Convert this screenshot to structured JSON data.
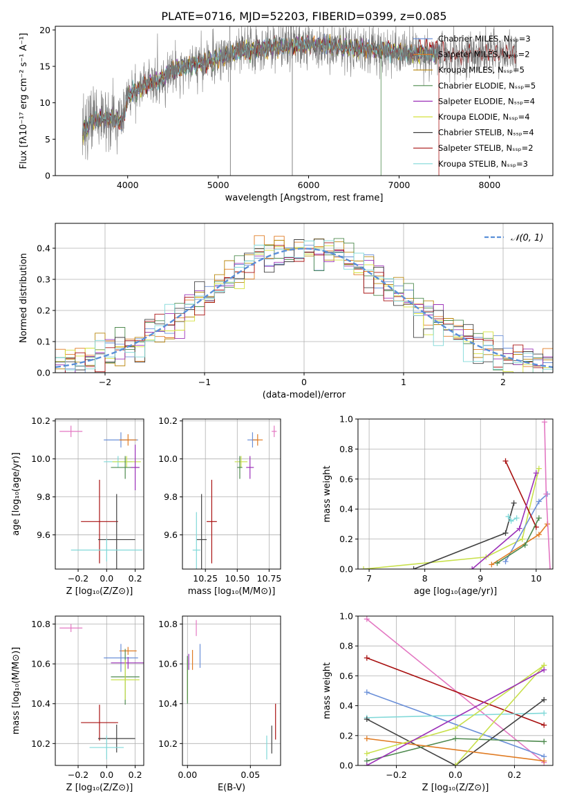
{
  "figure_title": "PLATE=0716, MJD=52203, FIBERID=0399, z=0.085",
  "model_colors": [
    "#6a8fd8",
    "#e07b22",
    "#b8860b",
    "#4e8a4e",
    "#9b30b8",
    "#d4e03a",
    "#404040",
    "#a81010",
    "#7fd8d8"
  ],
  "extra_colors": {
    "pink": "#e377c2",
    "olive": "#c8e04a",
    "lightgrey": "#888888"
  },
  "chart_data": [
    {
      "id": "spectrum",
      "type": "line",
      "xlabel": "wavelength [Angstrom, rest frame]",
      "ylabel": "Flux [fλ10⁻¹⁷ erg cm⁻² s⁻¹ A⁻¹]",
      "xlim": [
        3200,
        8700
      ],
      "ylim": [
        0,
        20.5
      ],
      "xticks": [
        4000,
        5000,
        6000,
        7000,
        8000
      ],
      "yticks": [
        0,
        5,
        10,
        15,
        20
      ],
      "grid": false,
      "legend_position": "top-right",
      "legend": [
        "Chabrier MILES, Nₛₛₚ=3",
        "Salpeter MILES, Nₛₛₚ=2",
        "Kroupa MILES, Nₛₛₚ=5",
        "Chabrier ELODIE, Nₛₛₚ=5",
        "Salpeter ELODIE, Nₛₛₚ=4",
        "Kroupa ELODIE, Nₛₛₚ=4",
        "Chabrier STELIB, Nₛₛₚ=4",
        "Salpeter STELIB, Nₛₛₚ=2",
        "Kroupa STELIB, Nₛₛₚ=3"
      ],
      "data_wavelength_range": [
        3500,
        8300
      ],
      "continuum_knots": [
        [
          3500,
          6.0
        ],
        [
          3600,
          7.5
        ],
        [
          3800,
          8.0
        ],
        [
          3950,
          7.5
        ],
        [
          4000,
          11.0
        ],
        [
          4200,
          12.5
        ],
        [
          4350,
          13.0
        ],
        [
          4500,
          14.5
        ],
        [
          4800,
          15.5
        ],
        [
          5000,
          16.0
        ],
        [
          5200,
          17.0
        ],
        [
          5500,
          17.5
        ],
        [
          6000,
          18.0
        ],
        [
          6500,
          17.5
        ],
        [
          7000,
          17.0
        ],
        [
          7500,
          16.5
        ],
        [
          8000,
          16.8
        ],
        [
          8300,
          16.8
        ]
      ]
    },
    {
      "id": "residuals",
      "type": "histogram",
      "xlabel": "(data-model)/error",
      "ylabel": "Normed distribution",
      "xlim": [
        -2.5,
        2.5
      ],
      "ylim": [
        0,
        0.48
      ],
      "xticks": [
        -2,
        -1,
        0,
        1,
        2
      ],
      "yticks": [
        0.0,
        0.1,
        0.2,
        0.3,
        0.4
      ],
      "grid": true,
      "legend_position": "top-right",
      "legend": [
        "𝒩(0, 1)"
      ],
      "reference_curve": {
        "name": "𝒩(0, 1)",
        "mean": 0,
        "sd": 1,
        "color": "#5a8fd8"
      }
    },
    {
      "id": "age_vs_Z",
      "type": "errorbar",
      "xlabel": "Z [log₁₀(Z/Z⊙)]",
      "ylabel": "age [log₁₀(age/yr)]",
      "xlim": [
        -0.36,
        0.26
      ],
      "ylim": [
        9.42,
        10.21
      ],
      "xticks": [
        -0.2,
        0.0,
        0.2
      ],
      "yticks": [
        9.6,
        9.8,
        10.0,
        10.2
      ],
      "grid": true,
      "points": [
        {
          "color": "#e377c2",
          "x": -0.25,
          "y": 10.145,
          "xerr": 0.08,
          "yerr": 0.03
        },
        {
          "color": "#6a8fd8",
          "x": 0.1,
          "y": 10.1,
          "xerr": 0.12,
          "yerr": 0.04
        },
        {
          "color": "#e07b22",
          "x": 0.15,
          "y": 10.1,
          "xerr": 0.06,
          "yerr": 0.03
        },
        {
          "color": "#7fd8d8",
          "x": 0.08,
          "y": 9.985,
          "xerr": 0.1,
          "yerr": 0.03
        },
        {
          "color": "#c8e04a",
          "x": 0.14,
          "y": 9.985,
          "xerr": 0.1,
          "yerr": 0.03
        },
        {
          "color": "#4e8a4e",
          "x": 0.13,
          "y": 9.955,
          "xerr": 0.1,
          "yerr": 0.06
        },
        {
          "color": "#9b30b8",
          "x": 0.2,
          "y": 9.955,
          "xerr": 0.03,
          "yerr": 0.12
        },
        {
          "color": "#a81010",
          "x": -0.05,
          "y": 9.67,
          "xerr": 0.13,
          "yerr": 0.22
        },
        {
          "color": "#404040",
          "x": 0.07,
          "y": 9.575,
          "xerr": 0.13,
          "yerr": 0.24
        },
        {
          "color": "#7fd8d8",
          "x": 0.0,
          "y": 9.52,
          "xerr": 0.25,
          "yerr": 0.06
        }
      ]
    },
    {
      "id": "age_vs_mass",
      "type": "errorbar",
      "xlabel": "mass [log₁₀(M/M⊙)]",
      "ylabel": "",
      "xlim": [
        10.07,
        10.84
      ],
      "ylim": [
        9.42,
        10.21
      ],
      "xticks": [
        10.25,
        10.5,
        10.75
      ],
      "yticks": [
        9.6,
        9.8,
        10.0,
        10.2
      ],
      "grid": true,
      "points": [
        {
          "color": "#e377c2",
          "x": 10.79,
          "y": 10.145,
          "xerr": 0.02,
          "yerr": 0.03
        },
        {
          "color": "#6a8fd8",
          "x": 10.62,
          "y": 10.1,
          "xerr": 0.04,
          "yerr": 0.04
        },
        {
          "color": "#e07b22",
          "x": 10.66,
          "y": 10.1,
          "xerr": 0.04,
          "yerr": 0.03
        },
        {
          "color": "#c8e04a",
          "x": 10.53,
          "y": 9.985,
          "xerr": 0.05,
          "yerr": 0.03
        },
        {
          "color": "#4e8a4e",
          "x": 10.52,
          "y": 9.955,
          "xerr": 0.02,
          "yerr": 0.06
        },
        {
          "color": "#9b30b8",
          "x": 10.6,
          "y": 9.955,
          "xerr": 0.03,
          "yerr": 0.06
        },
        {
          "color": "#a81010",
          "x": 10.3,
          "y": 9.67,
          "xerr": 0.04,
          "yerr": 0.22
        },
        {
          "color": "#404040",
          "x": 10.22,
          "y": 9.575,
          "xerr": 0.04,
          "yerr": 0.24
        },
        {
          "color": "#7fd8d8",
          "x": 10.18,
          "y": 9.52,
          "xerr": 0.03,
          "yerr": 0.2
        }
      ]
    },
    {
      "id": "massweight_vs_age",
      "type": "line",
      "xlabel": "age  [log₁₀(age/yr)]",
      "ylabel": "mass weight",
      "xlim": [
        6.8,
        10.3
      ],
      "ylim": [
        0,
        1.0
      ],
      "xticks": [
        7,
        8,
        9,
        10
      ],
      "yticks": [
        0.0,
        0.2,
        0.4,
        0.6,
        0.8,
        1.0
      ],
      "grid": true,
      "series": [
        {
          "color": "#c8e04a",
          "x": [
            6.9,
            9.1,
            9.75,
            10.05
          ],
          "y": [
            0.0,
            0.08,
            0.2,
            0.67
          ]
        },
        {
          "color": "#404040",
          "x": [
            7.8,
            9.45,
            9.6
          ],
          "y": [
            0.0,
            0.24,
            0.44
          ]
        },
        {
          "color": "#6a8fd8",
          "x": [
            9.45,
            10.05,
            10.2
          ],
          "y": [
            0.05,
            0.45,
            0.5
          ]
        },
        {
          "color": "#a81010",
          "x": [
            9.45,
            10.0
          ],
          "y": [
            0.72,
            0.28
          ]
        },
        {
          "color": "#e07b22",
          "x": [
            9.2,
            10.05,
            10.2
          ],
          "y": [
            0.03,
            0.23,
            0.3
          ]
        },
        {
          "color": "#4e8a4e",
          "x": [
            9.3,
            9.8,
            10.05
          ],
          "y": [
            0.04,
            0.16,
            0.34
          ]
        },
        {
          "color": "#7fd8d8",
          "x": [
            9.5,
            9.55,
            9.65
          ],
          "y": [
            0.35,
            0.32,
            0.34
          ]
        },
        {
          "color": "#9b30b8",
          "x": [
            8.85,
            9.7,
            10.0
          ],
          "y": [
            0.0,
            0.27,
            0.64
          ]
        },
        {
          "color": "#e377c2",
          "x": [
            10.15,
            10.18,
            10.25
          ],
          "y": [
            0.98,
            0.5,
            0.0
          ]
        }
      ]
    },
    {
      "id": "mass_vs_Z",
      "type": "errorbar",
      "xlabel": "Z [log₁₀(Z/Z⊙)]",
      "ylabel": "mass [log₁₀(M/M⊙)]",
      "xlim": [
        -0.36,
        0.26
      ],
      "ylim": [
        10.09,
        10.84
      ],
      "xticks": [
        -0.2,
        0.0,
        0.2
      ],
      "yticks": [
        10.2,
        10.4,
        10.6,
        10.8
      ],
      "grid": true,
      "points": [
        {
          "color": "#e377c2",
          "x": -0.25,
          "y": 10.78,
          "xerr": 0.08,
          "yerr": 0.02
        },
        {
          "color": "#e07b22",
          "x": 0.15,
          "y": 10.665,
          "xerr": 0.06,
          "yerr": 0.02
        },
        {
          "color": "#6a8fd8",
          "x": 0.1,
          "y": 10.63,
          "xerr": 0.12,
          "yerr": 0.07
        },
        {
          "color": "#9b30b8",
          "x": 0.15,
          "y": 10.605,
          "xerr": 0.12,
          "yerr": 0.03
        },
        {
          "color": "#4e8a4e",
          "x": 0.13,
          "y": 10.535,
          "xerr": 0.1,
          "yerr": 0.14
        },
        {
          "color": "#c8e04a",
          "x": 0.13,
          "y": 10.52,
          "xerr": 0.1,
          "yerr": 0.1
        },
        {
          "color": "#a81010",
          "x": -0.05,
          "y": 10.305,
          "xerr": 0.13,
          "yerr": 0.09
        },
        {
          "color": "#404040",
          "x": 0.07,
          "y": 10.225,
          "xerr": 0.13,
          "yerr": 0.07
        },
        {
          "color": "#7fd8d8",
          "x": 0.0,
          "y": 10.18,
          "xerr": 0.12,
          "yerr": 0.06
        }
      ]
    },
    {
      "id": "mass_vs_EBV",
      "type": "errorbar",
      "xlabel": "E(B-V)",
      "ylabel": "",
      "xlim": [
        -0.004,
        0.074
      ],
      "ylim": [
        10.09,
        10.84
      ],
      "xticks": [
        0.0,
        0.05
      ],
      "yticks": [
        10.2,
        10.4,
        10.6,
        10.8
      ],
      "grid": true,
      "points": [
        {
          "color": "#e377c2",
          "x": 0.007,
          "y": 10.78,
          "xerr": 0,
          "yerr": 0.04
        },
        {
          "color": "#e07b22",
          "x": 0.004,
          "y": 10.62,
          "xerr": 0,
          "yerr": 0.05
        },
        {
          "color": "#6a8fd8",
          "x": 0.01,
          "y": 10.64,
          "xerr": 0,
          "yerr": 0.06
        },
        {
          "color": "#9b30b8",
          "x": 0.001,
          "y": 10.61,
          "xerr": 0,
          "yerr": 0.04
        },
        {
          "color": "#c8e04a",
          "x": 0.0,
          "y": 10.52,
          "xerr": 0,
          "yerr": 0.1
        },
        {
          "color": "#4e8a4e",
          "x": 0.0,
          "y": 10.52,
          "xerr": 0,
          "yerr": 0.12
        },
        {
          "color": "#a81010",
          "x": 0.07,
          "y": 10.31,
          "xerr": 0,
          "yerr": 0.09
        },
        {
          "color": "#404040",
          "x": 0.067,
          "y": 10.22,
          "xerr": 0,
          "yerr": 0.07
        },
        {
          "color": "#7fd8d8",
          "x": 0.063,
          "y": 10.18,
          "xerr": 0,
          "yerr": 0.06
        }
      ]
    },
    {
      "id": "massweight_vs_Z",
      "type": "line",
      "xlabel": "Z [log₁₀(Z/Z⊙)]",
      "ylabel": "mass weight",
      "xlim": [
        -0.33,
        0.33
      ],
      "ylim": [
        0,
        1.0
      ],
      "xticks": [
        -0.2,
        0.0,
        0.2
      ],
      "yticks": [
        0.0,
        0.2,
        0.4,
        0.6,
        0.8,
        1.0
      ],
      "grid": true,
      "series": [
        {
          "color": "#e377c2",
          "x": [
            -0.3,
            0.3
          ],
          "y": [
            0.98,
            0.02
          ]
        },
        {
          "color": "#a81010",
          "x": [
            -0.3,
            0.3
          ],
          "y": [
            0.72,
            0.27
          ]
        },
        {
          "color": "#6a8fd8",
          "x": [
            -0.3,
            0.3
          ],
          "y": [
            0.49,
            0.06
          ]
        },
        {
          "color": "#7fd8d8",
          "x": [
            -0.3,
            0.3
          ],
          "y": [
            0.32,
            0.35
          ]
        },
        {
          "color": "#404040",
          "x": [
            -0.3,
            0.0,
            0.3
          ],
          "y": [
            0.31,
            0.0,
            0.44
          ]
        },
        {
          "color": "#4e8a4e",
          "x": [
            -0.3,
            0.0,
            0.3
          ],
          "y": [
            0.03,
            0.18,
            0.16
          ]
        },
        {
          "color": "#e07b22",
          "x": [
            -0.3,
            0.3
          ],
          "y": [
            0.18,
            0.03
          ]
        },
        {
          "color": "#c8e04a",
          "x": [
            -0.3,
            0.0,
            0.3
          ],
          "y": [
            0.08,
            0.25,
            0.67
          ]
        },
        {
          "color": "#c8e04a",
          "x": [
            0.0,
            0.3
          ],
          "y": [
            0.0,
            0.67
          ]
        },
        {
          "color": "#9b30b8",
          "x": [
            -0.3,
            0.3
          ],
          "y": [
            0.0,
            0.64
          ]
        }
      ]
    }
  ]
}
